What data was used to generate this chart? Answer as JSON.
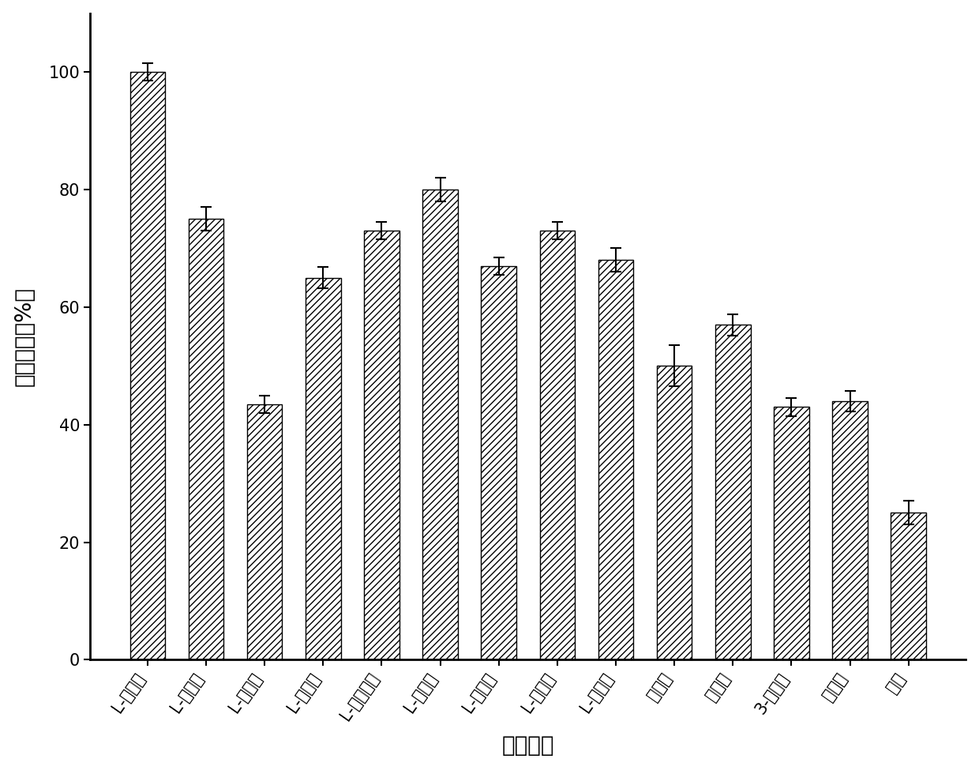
{
  "categories": [
    "L-甘氨酸",
    "L-丙氨酸",
    "L-脈氨酸",
    "L-丝氨酸",
    "L-天冬酰胺",
    "L-谷氨酸",
    "L-缬氨酸",
    "L-赖氨酸",
    "L-组氨酸",
    "异丙胺",
    "正丁胺",
    "3-丙醇胺",
    "乙酰胺",
    "苯胺"
  ],
  "values": [
    100,
    75,
    43.5,
    65,
    73,
    80,
    67,
    73,
    68,
    50,
    57,
    43,
    44,
    25
  ],
  "errors": [
    1.5,
    2.0,
    1.5,
    1.8,
    1.5,
    2.0,
    1.5,
    1.5,
    2.0,
    3.5,
    1.8,
    1.5,
    1.8,
    2.0
  ],
  "ylabel": "相对酶活（%）",
  "xlabel": "氨基供体",
  "ylim": [
    0,
    110
  ],
  "yticks": [
    0,
    20,
    40,
    60,
    80,
    100
  ],
  "bar_color": "#ffffff",
  "bar_edgecolor": "#000000",
  "hatch": "////",
  "bar_width": 0.6,
  "figsize": [
    12.4,
    9.75
  ],
  "dpi": 100,
  "ylabel_fontsize": 20,
  "xlabel_fontsize": 20,
  "tick_fontsize": 15,
  "xtick_rotation": 55
}
